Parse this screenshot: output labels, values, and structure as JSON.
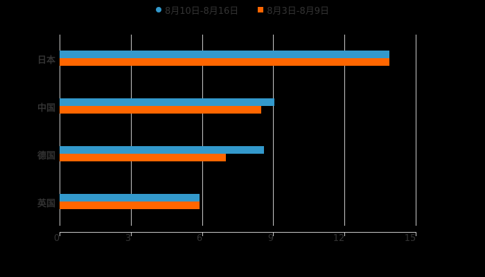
{
  "legend": {
    "items": [
      {
        "label": "8月10日-8月16日",
        "color": "#3399cc",
        "shape": "circle"
      },
      {
        "label": "8月3日-8月9日",
        "color": "#ff6600",
        "shape": "square"
      }
    ]
  },
  "axis": {
    "x_ticks": [
      "0",
      "3",
      "6",
      "9",
      "12",
      "15"
    ],
    "y_categories": [
      "日本",
      "中国",
      "德国",
      "英国"
    ]
  },
  "chart_data": {
    "type": "bar",
    "orientation": "horizontal",
    "title": "",
    "xlabel": "",
    "ylabel": "",
    "categories": [
      "日本",
      "中国",
      "德国",
      "英国"
    ],
    "series": [
      {
        "name": "8月10日-8月16日",
        "color": "#3399cc",
        "values": [
          13.9,
          9.05,
          8.6,
          5.9
        ]
      },
      {
        "name": "8月3日-8月9日",
        "color": "#ff6600",
        "values": [
          13.9,
          8.5,
          7.0,
          5.9
        ]
      }
    ],
    "xlim": [
      0,
      15
    ],
    "x_ticks": [
      0,
      3,
      6,
      9,
      12,
      15
    ],
    "grid": true,
    "legend_position": "top"
  }
}
